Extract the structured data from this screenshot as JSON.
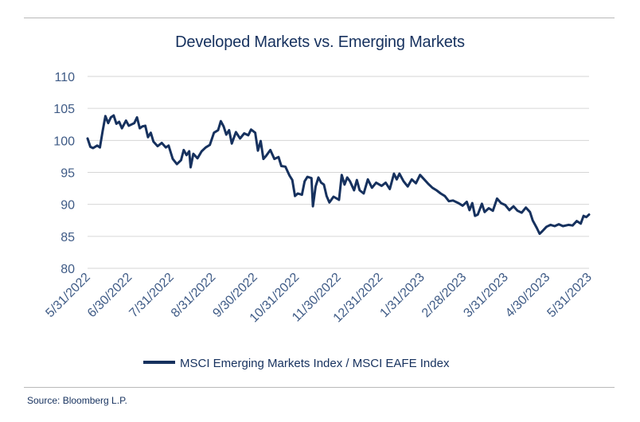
{
  "source": "Source: Bloomberg L.P.",
  "chart_data": {
    "type": "line",
    "title": "Developed Markets vs. Emerging Markets",
    "xlabel": "",
    "ylabel": "",
    "ylim": [
      80,
      110
    ],
    "yticks": [
      80,
      85,
      90,
      95,
      100,
      105,
      110
    ],
    "grid": true,
    "legend_position": "bottom",
    "x_tick_labels": [
      "5/31/2022",
      "6/30/2022",
      "7/31/2022",
      "8/31/2022",
      "9/30/2022",
      "10/31/2022",
      "11/30/2022",
      "12/31/2022",
      "1/31/2023",
      "2/28/2023",
      "3/31/2023",
      "4/30/2023",
      "5/31/2023"
    ],
    "series": [
      {
        "name": "MSCI Emerging Markets Index / MSCI EAFE Index",
        "color": "#16315e",
        "points": [
          [
            "2022-05-31",
            100.3
          ],
          [
            "2022-06-02",
            99.0
          ],
          [
            "2022-06-04",
            98.8
          ],
          [
            "2022-06-07",
            99.2
          ],
          [
            "2022-06-09",
            98.9
          ],
          [
            "2022-06-11",
            101.5
          ],
          [
            "2022-06-13",
            103.8
          ],
          [
            "2022-06-15",
            102.7
          ],
          [
            "2022-06-17",
            103.6
          ],
          [
            "2022-06-19",
            103.9
          ],
          [
            "2022-06-21",
            102.6
          ],
          [
            "2022-06-23",
            102.9
          ],
          [
            "2022-06-25",
            101.9
          ],
          [
            "2022-06-28",
            103.1
          ],
          [
            "2022-06-30",
            102.3
          ],
          [
            "2022-07-02",
            102.5
          ],
          [
            "2022-07-04",
            102.7
          ],
          [
            "2022-07-06",
            103.6
          ],
          [
            "2022-07-08",
            101.9
          ],
          [
            "2022-07-10",
            102.2
          ],
          [
            "2022-07-12",
            102.3
          ],
          [
            "2022-07-14",
            100.5
          ],
          [
            "2022-07-16",
            101.2
          ],
          [
            "2022-07-18",
            99.8
          ],
          [
            "2022-07-21",
            99.1
          ],
          [
            "2022-07-24",
            99.6
          ],
          [
            "2022-07-27",
            98.9
          ],
          [
            "2022-07-29",
            99.2
          ],
          [
            "2022-08-01",
            97.1
          ],
          [
            "2022-08-04",
            96.3
          ],
          [
            "2022-08-07",
            96.9
          ],
          [
            "2022-08-09",
            98.5
          ],
          [
            "2022-08-11",
            97.7
          ],
          [
            "2022-08-13",
            98.3
          ],
          [
            "2022-08-14",
            95.8
          ],
          [
            "2022-08-16",
            97.9
          ],
          [
            "2022-08-19",
            97.2
          ],
          [
            "2022-08-22",
            98.3
          ],
          [
            "2022-08-25",
            98.9
          ],
          [
            "2022-08-28",
            99.3
          ],
          [
            "2022-08-31",
            101.2
          ],
          [
            "2022-09-03",
            101.6
          ],
          [
            "2022-09-05",
            103.0
          ],
          [
            "2022-09-07",
            102.2
          ],
          [
            "2022-09-09",
            100.9
          ],
          [
            "2022-09-11",
            101.6
          ],
          [
            "2022-09-13",
            99.5
          ],
          [
            "2022-09-16",
            101.3
          ],
          [
            "2022-09-19",
            100.3
          ],
          [
            "2022-09-22",
            101.1
          ],
          [
            "2022-09-25",
            100.8
          ],
          [
            "2022-09-27",
            101.7
          ],
          [
            "2022-09-30",
            101.2
          ],
          [
            "2022-10-02",
            98.4
          ],
          [
            "2022-10-04",
            99.9
          ],
          [
            "2022-10-06",
            97.1
          ],
          [
            "2022-10-08",
            97.6
          ],
          [
            "2022-10-11",
            98.5
          ],
          [
            "2022-10-14",
            97.1
          ],
          [
            "2022-10-17",
            97.4
          ],
          [
            "2022-10-19",
            96.0
          ],
          [
            "2022-10-22",
            95.9
          ],
          [
            "2022-10-25",
            94.5
          ],
          [
            "2022-10-27",
            93.8
          ],
          [
            "2022-10-29",
            91.3
          ],
          [
            "2022-10-31",
            91.7
          ],
          [
            "2022-11-03",
            91.5
          ],
          [
            "2022-11-05",
            93.6
          ],
          [
            "2022-11-07",
            94.3
          ],
          [
            "2022-11-10",
            94.1
          ],
          [
            "2022-11-11",
            89.7
          ],
          [
            "2022-11-13",
            92.8
          ],
          [
            "2022-11-15",
            94.2
          ],
          [
            "2022-11-17",
            93.4
          ],
          [
            "2022-11-19",
            93.1
          ],
          [
            "2022-11-21",
            91.3
          ],
          [
            "2022-11-23",
            90.3
          ],
          [
            "2022-11-26",
            91.2
          ],
          [
            "2022-11-30",
            90.7
          ],
          [
            "2022-12-02",
            94.6
          ],
          [
            "2022-12-04",
            93.1
          ],
          [
            "2022-12-06",
            94.2
          ],
          [
            "2022-12-08",
            93.6
          ],
          [
            "2022-12-11",
            92.2
          ],
          [
            "2022-12-13",
            93.8
          ],
          [
            "2022-12-15",
            92.2
          ],
          [
            "2022-12-18",
            91.7
          ],
          [
            "2022-12-21",
            93.9
          ],
          [
            "2022-12-24",
            92.6
          ],
          [
            "2022-12-27",
            93.4
          ],
          [
            "2022-12-31",
            92.9
          ],
          [
            "2023-01-03",
            93.4
          ],
          [
            "2023-01-06",
            92.4
          ],
          [
            "2023-01-09",
            94.8
          ],
          [
            "2023-01-11",
            93.9
          ],
          [
            "2023-01-13",
            94.8
          ],
          [
            "2023-01-16",
            93.6
          ],
          [
            "2023-01-19",
            92.8
          ],
          [
            "2023-01-22",
            93.9
          ],
          [
            "2023-01-25",
            93.3
          ],
          [
            "2023-01-28",
            94.6
          ],
          [
            "2023-01-31",
            93.9
          ],
          [
            "2023-02-03",
            93.2
          ],
          [
            "2023-02-06",
            92.6
          ],
          [
            "2023-02-09",
            92.2
          ],
          [
            "2023-02-12",
            91.7
          ],
          [
            "2023-02-15",
            91.3
          ],
          [
            "2023-02-18",
            90.5
          ],
          [
            "2023-02-21",
            90.6
          ],
          [
            "2023-02-25",
            90.2
          ],
          [
            "2023-02-28",
            89.8
          ],
          [
            "2023-03-03",
            90.4
          ],
          [
            "2023-03-05",
            89.1
          ],
          [
            "2023-03-07",
            90.2
          ],
          [
            "2023-03-09",
            88.2
          ],
          [
            "2023-03-11",
            88.4
          ],
          [
            "2023-03-14",
            90.1
          ],
          [
            "2023-03-16",
            88.8
          ],
          [
            "2023-03-19",
            89.4
          ],
          [
            "2023-03-22",
            89.0
          ],
          [
            "2023-03-25",
            90.9
          ],
          [
            "2023-03-28",
            90.2
          ],
          [
            "2023-03-31",
            89.9
          ],
          [
            "2023-04-03",
            89.1
          ],
          [
            "2023-04-06",
            89.7
          ],
          [
            "2023-04-09",
            89.0
          ],
          [
            "2023-04-12",
            88.7
          ],
          [
            "2023-04-15",
            89.5
          ],
          [
            "2023-04-18",
            88.8
          ],
          [
            "2023-04-20",
            87.5
          ],
          [
            "2023-04-23",
            86.3
          ],
          [
            "2023-04-25",
            85.4
          ],
          [
            "2023-04-27",
            85.8
          ],
          [
            "2023-04-30",
            86.5
          ],
          [
            "2023-05-03",
            86.8
          ],
          [
            "2023-05-06",
            86.6
          ],
          [
            "2023-05-09",
            86.9
          ],
          [
            "2023-05-12",
            86.6
          ],
          [
            "2023-05-16",
            86.8
          ],
          [
            "2023-05-19",
            86.7
          ],
          [
            "2023-05-22",
            87.4
          ],
          [
            "2023-05-25",
            87.0
          ],
          [
            "2023-05-27",
            88.2
          ],
          [
            "2023-05-29",
            88.0
          ],
          [
            "2023-05-31",
            88.4
          ]
        ]
      }
    ]
  }
}
